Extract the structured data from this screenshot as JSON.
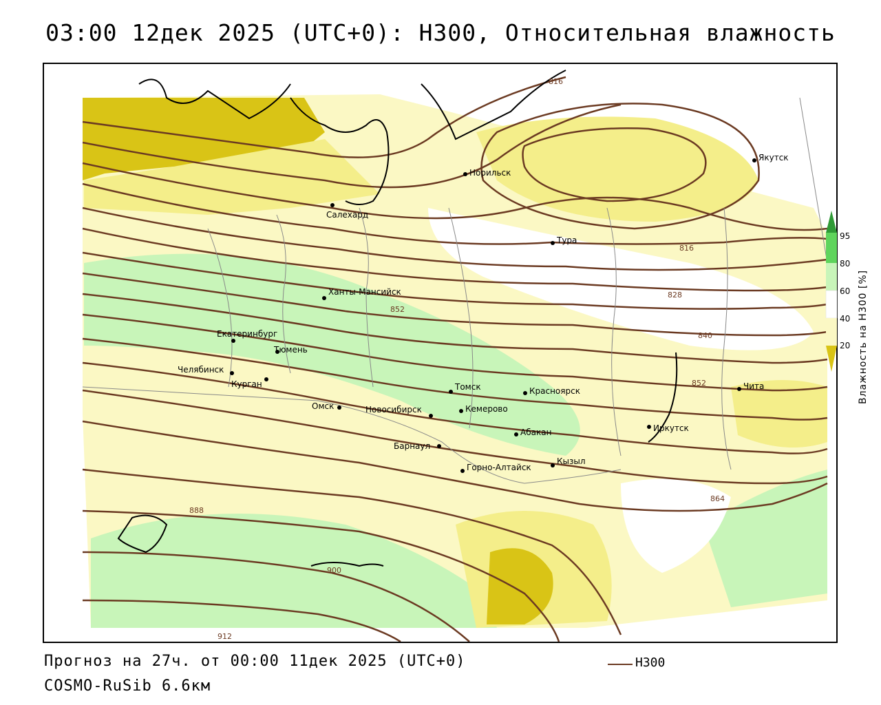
{
  "title": "03:00 12дек 2025 (UTC+0): H300, Относительная влажность",
  "footer": {
    "forecast": "Прогноз на 27ч. от 00:00 11дек 2025 (UTC+0)",
    "model": "COSMO-RuSib 6.6км"
  },
  "legend": {
    "contour_label": "H300",
    "contour_color": "#6b3a22"
  },
  "colorbar": {
    "title": "Влажность на H300 [%]",
    "ticks": [
      "95",
      "80",
      "60",
      "40",
      "20"
    ],
    "colors": {
      "lt20": "#d9c416",
      "b20_40": "#f4ee8a",
      "b40_60": "#fbf8c4",
      "b60_80": "#c8f5b9",
      "b80_95": "#5fd45c",
      "gt95": "#2f9a36"
    }
  },
  "isoline_labels": [
    "816",
    "816",
    "828",
    "840",
    "852",
    "852",
    "864",
    "888",
    "900",
    "912"
  ],
  "cities": [
    {
      "name": "Якутск"
    },
    {
      "name": "Норильск"
    },
    {
      "name": "Салехард"
    },
    {
      "name": "Тура"
    },
    {
      "name": "Ханты-Мансийск"
    },
    {
      "name": "Екатеринбург"
    },
    {
      "name": "Тюмень"
    },
    {
      "name": "Челябинск"
    },
    {
      "name": "Курган"
    },
    {
      "name": "Омск"
    },
    {
      "name": "Новосибирск"
    },
    {
      "name": "Томск"
    },
    {
      "name": "Кемерово"
    },
    {
      "name": "Красноярск"
    },
    {
      "name": "Абакан"
    },
    {
      "name": "Барнаул"
    },
    {
      "name": "Горно-Алтайск"
    },
    {
      "name": "Кызыл"
    },
    {
      "name": "Иркутск"
    },
    {
      "name": "Чита"
    }
  ]
}
